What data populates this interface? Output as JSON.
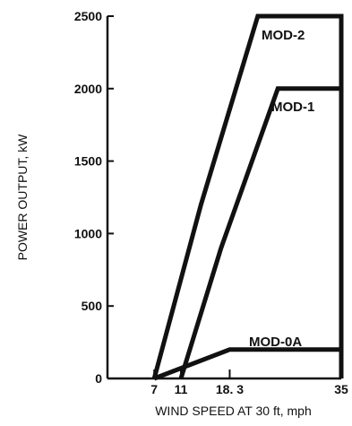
{
  "chart_data": {
    "type": "line",
    "title": "",
    "xlabel": "WIND SPEED AT 30 ft, mph",
    "ylabel": "POWER OUTPUT, kW",
    "xlim": [
      0,
      35
    ],
    "ylim": [
      0,
      2500
    ],
    "x_ticks": [
      7,
      11,
      18.3,
      35
    ],
    "x_tick_labels": [
      "7",
      "11",
      "18. 3",
      "35"
    ],
    "y_ticks": [
      0,
      500,
      1000,
      1500,
      2000,
      2500
    ],
    "y_tick_labels": [
      "0",
      "500",
      "1000",
      "1500",
      "2000",
      "2500"
    ],
    "grid": false,
    "series": [
      {
        "name": "MOD-2",
        "x": [
          7,
          14,
          22.5,
          35,
          35
        ],
        "y": [
          0,
          1200,
          2500,
          2500,
          0
        ]
      },
      {
        "name": "MOD-1",
        "x": [
          11,
          17,
          25.5,
          35,
          35
        ],
        "y": [
          0,
          900,
          2000,
          2000,
          0
        ]
      },
      {
        "name": "MOD-0A",
        "x": [
          7,
          18.3,
          35,
          35
        ],
        "y": [
          0,
          200,
          200,
          0
        ]
      }
    ]
  }
}
